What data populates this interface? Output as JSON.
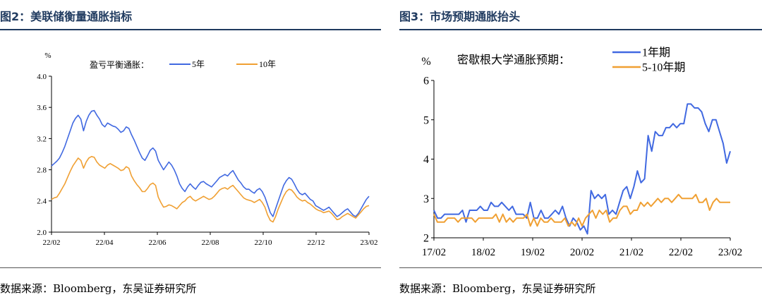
{
  "left_panel": {
    "title": "图2：美联储衡量通胀指标",
    "source": "数据来源：Bloomberg，东吴证券研究所",
    "unit": "%",
    "legend_prefix": "盈亏平衡通胀："
  },
  "right_panel": {
    "title": "图3：市场预期通胀抬头",
    "source": "数据来源：Bloomberg，东吴证券研究所",
    "unit": "%",
    "legend_prefix": "密歇根大学通胀预期："
  },
  "colors": {
    "blue": "#4169e1",
    "orange": "#f0a033",
    "rule": "#1f3a5f"
  },
  "chart_data": [
    {
      "type": "line",
      "title": "",
      "ylabel": "%",
      "xlabel": "",
      "ylim": [
        2.0,
        4.0
      ],
      "yticks": [
        "2.0",
        "2.4",
        "2.8",
        "3.2",
        "3.6",
        "4.0"
      ],
      "xticks": [
        "22/02",
        "22/04",
        "22/06",
        "22/08",
        "22/10",
        "22/12",
        "23/02"
      ],
      "x_start": "22/02",
      "legend": "top",
      "series": [
        {
          "name": "5年",
          "color": "#4169e1",
          "values": [
            2.85,
            2.88,
            2.91,
            2.95,
            3.02,
            3.1,
            3.2,
            3.3,
            3.4,
            3.46,
            3.5,
            3.45,
            3.3,
            3.42,
            3.5,
            3.55,
            3.56,
            3.5,
            3.45,
            3.38,
            3.35,
            3.4,
            3.38,
            3.36,
            3.35,
            3.32,
            3.28,
            3.3,
            3.35,
            3.33,
            3.25,
            3.18,
            3.1,
            3.02,
            2.95,
            2.92,
            2.98,
            3.05,
            3.08,
            3.04,
            2.92,
            2.86,
            2.8,
            2.85,
            2.9,
            2.86,
            2.8,
            2.72,
            2.62,
            2.56,
            2.52,
            2.58,
            2.62,
            2.58,
            2.55,
            2.6,
            2.64,
            2.65,
            2.62,
            2.6,
            2.58,
            2.62,
            2.66,
            2.7,
            2.72,
            2.74,
            2.72,
            2.76,
            2.79,
            2.73,
            2.67,
            2.63,
            2.58,
            2.55,
            2.55,
            2.52,
            2.5,
            2.54,
            2.56,
            2.52,
            2.45,
            2.35,
            2.25,
            2.2,
            2.3,
            2.4,
            2.5,
            2.6,
            2.66,
            2.7,
            2.68,
            2.62,
            2.55,
            2.5,
            2.48,
            2.5,
            2.46,
            2.42,
            2.4,
            2.34,
            2.32,
            2.3,
            2.28,
            2.3,
            2.32,
            2.28,
            2.24,
            2.2,
            2.22,
            2.25,
            2.28,
            2.3,
            2.26,
            2.22,
            2.2,
            2.24,
            2.3,
            2.36,
            2.42,
            2.46
          ]
        },
        {
          "name": "10年",
          "color": "#f0a033",
          "values": [
            2.42,
            2.44,
            2.45,
            2.5,
            2.56,
            2.62,
            2.7,
            2.78,
            2.85,
            2.9,
            2.95,
            2.92,
            2.82,
            2.9,
            2.95,
            2.97,
            2.96,
            2.9,
            2.86,
            2.84,
            2.82,
            2.86,
            2.88,
            2.86,
            2.84,
            2.82,
            2.79,
            2.8,
            2.84,
            2.82,
            2.72,
            2.66,
            2.61,
            2.57,
            2.52,
            2.52,
            2.56,
            2.61,
            2.63,
            2.6,
            2.45,
            2.38,
            2.32,
            2.33,
            2.35,
            2.34,
            2.32,
            2.3,
            2.34,
            2.38,
            2.4,
            2.44,
            2.46,
            2.42,
            2.4,
            2.42,
            2.44,
            2.46,
            2.44,
            2.42,
            2.43,
            2.46,
            2.5,
            2.54,
            2.56,
            2.57,
            2.55,
            2.58,
            2.6,
            2.56,
            2.52,
            2.48,
            2.44,
            2.42,
            2.41,
            2.4,
            2.38,
            2.4,
            2.42,
            2.38,
            2.32,
            2.22,
            2.15,
            2.13,
            2.2,
            2.3,
            2.38,
            2.46,
            2.52,
            2.55,
            2.54,
            2.5,
            2.45,
            2.42,
            2.4,
            2.41,
            2.38,
            2.36,
            2.33,
            2.3,
            2.28,
            2.27,
            2.25,
            2.26,
            2.27,
            2.24,
            2.2,
            2.16,
            2.17,
            2.2,
            2.22,
            2.24,
            2.22,
            2.2,
            2.18,
            2.22,
            2.26,
            2.3,
            2.33,
            2.34
          ]
        }
      ]
    },
    {
      "type": "line",
      "title": "",
      "ylabel": "%",
      "xlabel": "",
      "ylim": [
        2,
        6
      ],
      "yticks": [
        "2",
        "3",
        "4",
        "5",
        "6"
      ],
      "xticks": [
        "17/02",
        "18/02",
        "19/02",
        "20/02",
        "21/02",
        "22/02",
        "23/02"
      ],
      "x_start": "17/02",
      "legend": "top",
      "series": [
        {
          "name": "1年期",
          "color": "#4169e1",
          "values": [
            2.7,
            2.5,
            2.5,
            2.6,
            2.6,
            2.6,
            2.6,
            2.6,
            2.7,
            2.4,
            2.7,
            2.7,
            2.7,
            2.8,
            2.7,
            2.7,
            2.9,
            2.8,
            2.8,
            2.9,
            2.8,
            2.7,
            2.8,
            2.6,
            2.6,
            2.6,
            2.5,
            2.9,
            2.5,
            2.5,
            2.7,
            2.5,
            2.5,
            2.6,
            2.7,
            2.6,
            2.8,
            2.5,
            2.3,
            2.5,
            2.4,
            2.2,
            2.3,
            2.1,
            3.2,
            3.0,
            3.1,
            3.0,
            3.1,
            2.6,
            2.7,
            2.6,
            2.9,
            3.2,
            3.3,
            3.0,
            3.3,
            3.7,
            3.4,
            3.5,
            4.6,
            4.2,
            4.7,
            4.6,
            4.6,
            4.8,
            4.8,
            4.9,
            4.8,
            4.9,
            4.9,
            5.4,
            5.4,
            5.3,
            5.3,
            5.2,
            4.9,
            4.7,
            5.0,
            5.0,
            4.7,
            4.4,
            3.9,
            4.2
          ]
        },
        {
          "name": "5-10年期",
          "color": "#f0a033",
          "values": [
            2.6,
            2.4,
            2.4,
            2.4,
            2.5,
            2.5,
            2.5,
            2.4,
            2.5,
            2.5,
            2.5,
            2.5,
            2.4,
            2.5,
            2.5,
            2.5,
            2.5,
            2.5,
            2.6,
            2.4,
            2.6,
            2.4,
            2.5,
            2.4,
            2.5,
            2.5,
            2.5,
            2.6,
            2.3,
            2.5,
            2.3,
            2.5,
            2.4,
            2.4,
            2.5,
            2.4,
            2.4,
            2.4,
            2.5,
            2.3,
            2.4,
            2.3,
            2.5,
            2.3,
            2.5,
            2.6,
            2.7,
            2.5,
            2.7,
            2.6,
            2.7,
            2.4,
            2.5,
            2.5,
            2.7,
            2.8,
            2.8,
            2.6,
            2.7,
            2.7,
            2.9,
            2.8,
            2.9,
            2.8,
            2.9,
            3.0,
            2.9,
            3.0,
            3.0,
            2.9,
            3.0,
            3.1,
            3.0,
            3.0,
            3.0,
            3.0,
            3.1,
            2.9,
            2.9,
            3.0,
            2.7,
            2.9,
            3.0,
            2.9,
            2.9,
            2.9,
            2.9
          ]
        }
      ]
    }
  ]
}
